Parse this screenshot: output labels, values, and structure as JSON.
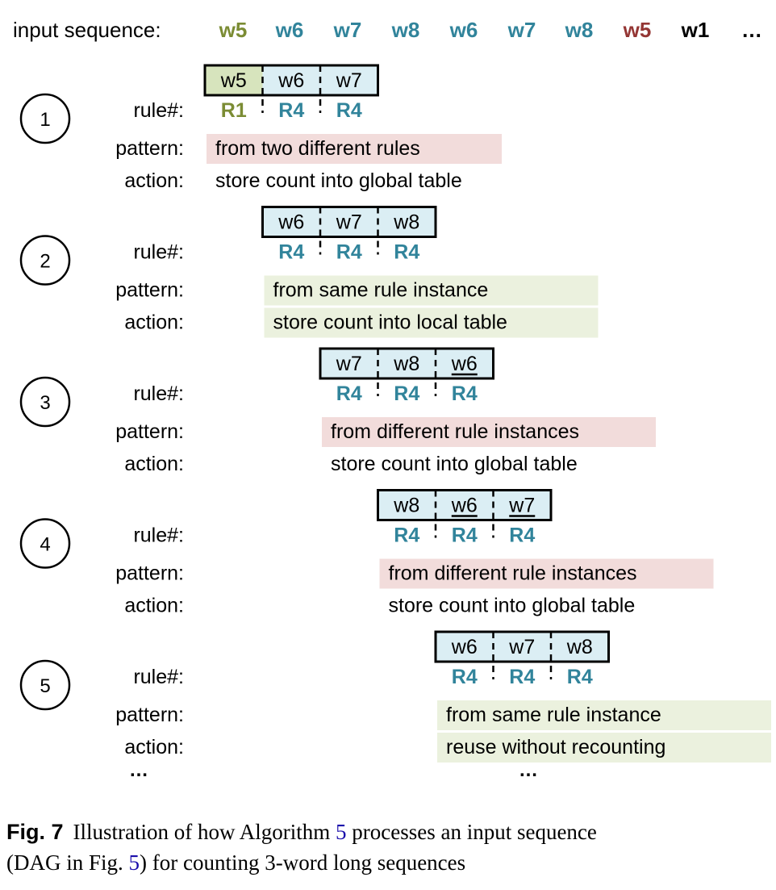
{
  "colors": {
    "green_text": "#7b8c34",
    "teal_text": "#31849b",
    "red_text": "#943634",
    "black": "#000000",
    "green_fill": "#d7e4bd",
    "blue_fill": "#dbeef4",
    "pink_fill": "#f2dcdb",
    "light_green_fill": "#ebf1de",
    "link_blue": "#1a0dab"
  },
  "input_sequence": {
    "label": "input sequence:",
    "tokens": [
      {
        "text": "w5",
        "color": "green"
      },
      {
        "text": "w6",
        "color": "teal"
      },
      {
        "text": "w7",
        "color": "teal"
      },
      {
        "text": "w8",
        "color": "teal"
      },
      {
        "text": "w6",
        "color": "teal"
      },
      {
        "text": "w7",
        "color": "teal"
      },
      {
        "text": "w8",
        "color": "teal"
      },
      {
        "text": "w5",
        "color": "red"
      },
      {
        "text": "w1",
        "color": "black"
      },
      {
        "text": "…",
        "color": "black"
      }
    ]
  },
  "row_labels": {
    "rule": "rule#:",
    "pattern": "pattern:",
    "action": "action:"
  },
  "steps": [
    {
      "number": "1",
      "start": 0,
      "words": [
        {
          "text": "w5",
          "fill": "green"
        },
        {
          "text": "w6",
          "fill": "blue"
        },
        {
          "text": "w7",
          "fill": "blue"
        }
      ],
      "rules": [
        {
          "text": "R1",
          "color": "green",
          "underline": false
        },
        {
          "text": "R4",
          "color": "teal",
          "underline": false
        },
        {
          "text": "R4",
          "color": "teal",
          "underline": false
        }
      ],
      "pattern": {
        "text": "from two different rules",
        "fill": "pink"
      },
      "action": {
        "text": "store count into global table",
        "fill": "none"
      }
    },
    {
      "number": "2",
      "start": 1,
      "words": [
        {
          "text": "w6",
          "fill": "blue"
        },
        {
          "text": "w7",
          "fill": "blue"
        },
        {
          "text": "w8",
          "fill": "blue"
        }
      ],
      "rules": [
        {
          "text": "R4",
          "color": "teal",
          "underline": false
        },
        {
          "text": "R4",
          "color": "teal",
          "underline": false
        },
        {
          "text": "R4",
          "color": "teal",
          "underline": false
        }
      ],
      "pattern": {
        "text": "from same rule instance",
        "fill": "lightgreen"
      },
      "action": {
        "text": "store count into local table",
        "fill": "lightgreen"
      }
    },
    {
      "number": "3",
      "start": 2,
      "words": [
        {
          "text": "w7",
          "fill": "blue"
        },
        {
          "text": "w8",
          "fill": "blue"
        },
        {
          "text": "w6",
          "fill": "blue"
        }
      ],
      "rules": [
        {
          "text": "R4",
          "color": "teal",
          "underline": false
        },
        {
          "text": "R4",
          "color": "teal",
          "underline": false
        },
        {
          "text": "R4",
          "color": "teal",
          "underline": true
        }
      ],
      "pattern": {
        "text": "from different rule instances",
        "fill": "pink"
      },
      "action": {
        "text": "store count into global table",
        "fill": "none"
      }
    },
    {
      "number": "4",
      "start": 3,
      "words": [
        {
          "text": "w8",
          "fill": "blue"
        },
        {
          "text": "w6",
          "fill": "blue"
        },
        {
          "text": "w7",
          "fill": "blue"
        }
      ],
      "rules": [
        {
          "text": "R4",
          "color": "teal",
          "underline": false
        },
        {
          "text": "R4",
          "color": "teal",
          "underline": true
        },
        {
          "text": "R4",
          "color": "teal",
          "underline": true
        }
      ],
      "pattern": {
        "text": "from different rule instances",
        "fill": "pink"
      },
      "action": {
        "text": "store count into global table",
        "fill": "none"
      }
    },
    {
      "number": "5",
      "start": 4,
      "words": [
        {
          "text": "w6",
          "fill": "blue"
        },
        {
          "text": "w7",
          "fill": "blue"
        },
        {
          "text": "w8",
          "fill": "blue"
        }
      ],
      "rules": [
        {
          "text": "R4",
          "color": "teal",
          "underline": false
        },
        {
          "text": "R4",
          "color": "teal",
          "underline": false
        },
        {
          "text": "R4",
          "color": "teal",
          "underline": false
        }
      ],
      "pattern": {
        "text": "from same rule instance",
        "fill": "lightgreen"
      },
      "action": {
        "text": "reuse without recounting",
        "fill": "lightgreen"
      }
    }
  ],
  "ellipsis": {
    "left": "…",
    "right": "…"
  },
  "caption": {
    "label": "Fig. 7",
    "text_part1": "Illustration of how Algorithm",
    "ref1": "5",
    "text_part2": "processes an input sequence",
    "text_part3": "(DAG in Fig.",
    "ref2": "5",
    "text_part4": ") for counting 3-word long sequences"
  }
}
